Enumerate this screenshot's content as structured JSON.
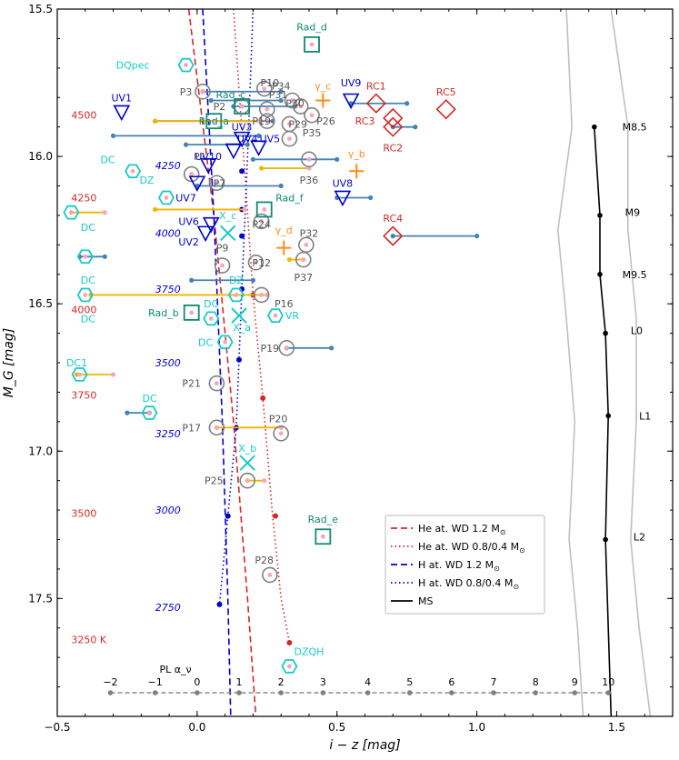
{
  "chart_data": {
    "type": "scatter",
    "xlabel": "i − z  [mag]",
    "ylabel": "M_G  [mag]",
    "xlim": [
      -0.5,
      1.7
    ],
    "ylim": [
      17.9,
      15.5
    ],
    "x_ticks": [
      -0.5,
      0.0,
      0.5,
      1.0,
      1.5
    ],
    "x_tick_labels": [
      "−0.5",
      "0.0",
      "0.5",
      "1.0",
      "1.5"
    ],
    "y_ticks": [
      15.5,
      16.0,
      16.5,
      17.0,
      17.5
    ],
    "y_tick_labels": [
      "15.5",
      "16.0",
      "16.5",
      "17.0",
      "17.5"
    ],
    "colors": {
      "he": "#d62728",
      "h": "#0000cc",
      "ms": "#000000",
      "ms_band": "#c0c0c0",
      "dc": "#19c9c9",
      "rad": "#108a73",
      "uv": "#0000cc",
      "rc": "#d62728",
      "gamma": "#ff8c1a",
      "p": "#808080",
      "pl": "#808080",
      "blue_line": "#4682b4",
      "yellow_line": "#f0b400",
      "pink": "#f4a7b9",
      "teff_he": "#d62728",
      "teff_h": "#0000cc"
    },
    "series": [
      {
        "name": "He at. WD 1.2 M☉",
        "style": "dashed",
        "color": "he",
        "x": [
          -0.03,
          0.06,
          0.13,
          0.18,
          0.21
        ],
        "y": [
          15.5,
          16.2,
          16.9,
          17.5,
          17.9
        ]
      },
      {
        "name": "He at. WD 0.8/0.4 M☉",
        "style": "dotted",
        "color": "he",
        "x": [
          0.13,
          0.17,
          0.2,
          0.235,
          0.27,
          0.3,
          0.33
        ],
        "y": [
          15.5,
          16.05,
          16.47,
          16.82,
          17.22,
          17.5,
          17.65
        ]
      },
      {
        "name": "H at. WD 1.2 M☉",
        "style": "dashed",
        "color": "h",
        "x": [
          0.02,
          0.06,
          0.09,
          0.11,
          0.12
        ],
        "y": [
          15.5,
          16.2,
          16.9,
          17.5,
          17.9
        ]
      },
      {
        "name": "H at. WD 0.8/0.4 M☉",
        "style": "dotted",
        "color": "h",
        "x": [
          0.2,
          0.18,
          0.16,
          0.14,
          0.11,
          0.08
        ],
        "y": [
          15.5,
          16.0,
          16.45,
          16.92,
          17.22,
          17.52
        ]
      },
      {
        "name": "MS",
        "style": "solid",
        "color": "ms",
        "x": [
          1.42,
          1.44,
          1.44,
          1.46,
          1.47,
          1.46,
          1.47,
          1.48
        ],
        "y": [
          15.9,
          16.2,
          16.4,
          16.6,
          16.88,
          17.3,
          17.6,
          17.9
        ]
      }
    ],
    "ms_band_upper": {
      "x": [
        1.32,
        1.34,
        1.29,
        1.32,
        1.35,
        1.33,
        1.36,
        1.38
      ],
      "y": [
        15.5,
        15.9,
        16.25,
        16.55,
        16.9,
        17.3,
        17.6,
        17.9
      ]
    },
    "ms_band_lower": {
      "x": [
        1.48,
        1.54,
        1.54,
        1.57,
        1.57,
        1.55,
        1.58,
        1.62
      ],
      "y": [
        15.5,
        15.9,
        16.25,
        16.55,
        16.9,
        17.3,
        17.6,
        17.9
      ]
    },
    "ms_points": {
      "x": [
        1.42,
        1.44,
        1.44,
        1.46,
        1.47,
        1.46
      ],
      "y": [
        15.9,
        16.2,
        16.4,
        16.6,
        16.88,
        17.3
      ]
    },
    "he_markers": {
      "x": [
        0.2,
        0.235,
        0.28,
        0.33
      ],
      "y": [
        16.47,
        16.82,
        17.22,
        17.65
      ]
    },
    "h_markers": {
      "x": [
        0.16,
        0.16,
        0.16,
        0.16,
        0.15,
        0.14,
        0.11,
        0.08
      ],
      "y": [
        16.05,
        16.18,
        16.27,
        16.45,
        16.69,
        16.92,
        17.22,
        17.52
      ]
    },
    "ms_labels": [
      {
        "text": "M8.5",
        "x": 1.52,
        "y": 15.9
      },
      {
        "text": "M9",
        "x": 1.53,
        "y": 16.19
      },
      {
        "text": "M9.5",
        "x": 1.52,
        "y": 16.4
      },
      {
        "text": "L0",
        "x": 1.55,
        "y": 16.59
      },
      {
        "text": "L1",
        "x": 1.58,
        "y": 16.88
      },
      {
        "text": "L2",
        "x": 1.56,
        "y": 17.29
      }
    ],
    "teff_he_labels": [
      {
        "text": "4500",
        "x": -0.45,
        "y": 15.86
      },
      {
        "text": "4250",
        "x": -0.45,
        "y": 16.14
      },
      {
        "text": "4000",
        "x": -0.45,
        "y": 16.52
      },
      {
        "text": "3750",
        "x": -0.45,
        "y": 16.81
      },
      {
        "text": "3500",
        "x": -0.45,
        "y": 17.21
      },
      {
        "text": "3250 K",
        "x": -0.45,
        "y": 17.64
      }
    ],
    "teff_h_labels": [
      {
        "text": "4250",
        "x": -0.15,
        "y": 16.03
      },
      {
        "text": "4000",
        "x": -0.15,
        "y": 16.26
      },
      {
        "text": "3750",
        "x": -0.15,
        "y": 16.45
      },
      {
        "text": "3500",
        "x": -0.15,
        "y": 16.7
      },
      {
        "text": "3250",
        "x": -0.15,
        "y": 16.94
      },
      {
        "text": "3000",
        "x": -0.15,
        "y": 17.2
      },
      {
        "text": "2750",
        "x": -0.15,
        "y": 17.53
      }
    ],
    "pl_axis": {
      "label": "PL α_ν",
      "label_x": -0.02,
      "y": 17.82,
      "ticks": [
        {
          "text": "−2",
          "x": -0.31
        },
        {
          "text": "−1",
          "x": -0.15
        },
        {
          "text": "0",
          "x": 0.0
        },
        {
          "text": "1",
          "x": 0.15
        },
        {
          "text": "2",
          "x": 0.3
        },
        {
          "text": "3",
          "x": 0.45
        },
        {
          "text": "4",
          "x": 0.61
        },
        {
          "text": "5",
          "x": 0.76
        },
        {
          "text": "6",
          "x": 0.91
        },
        {
          "text": "7",
          "x": 1.06
        },
        {
          "text": "8",
          "x": 1.21
        },
        {
          "text": "9",
          "x": 1.35
        },
        {
          "text": "10",
          "x": 1.47
        }
      ]
    },
    "dc_objects": [
      {
        "label": "DQpec",
        "x": -0.04,
        "y": 15.69,
        "lx": -0.23,
        "ly": 15.69
      },
      {
        "label": "DC",
        "x": -0.23,
        "y": 16.05,
        "lx": -0.32,
        "ly": 16.01
      },
      {
        "label": "DZ",
        "x": -0.11,
        "y": 16.14,
        "lx": -0.18,
        "ly": 16.08
      },
      {
        "label": "DC",
        "x": -0.45,
        "y": 16.19,
        "lx": -0.39,
        "ly": 16.24
      },
      {
        "label": "DC",
        "x": -0.4,
        "y": 16.34,
        "lx": -0.39,
        "ly": 16.42
      },
      {
        "label": "DC",
        "x": -0.4,
        "y": 16.47,
        "lx": -0.39,
        "ly": 16.55
      },
      {
        "label": "DZ",
        "x": 0.14,
        "y": 16.47,
        "lx": 0.14,
        "ly": 16.42
      },
      {
        "label": "DC",
        "x": 0.05,
        "y": 16.55,
        "lx": 0.05,
        "ly": 16.5
      },
      {
        "label": "VR",
        "x": 0.28,
        "y": 16.54,
        "lx": 0.34,
        "ly": 16.54
      },
      {
        "label": "DC",
        "x": 0.1,
        "y": 16.63,
        "lx": 0.03,
        "ly": 16.63
      },
      {
        "label": "DC1",
        "x": -0.42,
        "y": 16.74,
        "lx": -0.43,
        "ly": 16.7
      },
      {
        "label": "DC",
        "x": -0.17,
        "y": 16.87,
        "lx": -0.17,
        "ly": 16.82
      },
      {
        "label": "DZQH",
        "x": 0.33,
        "y": 17.73,
        "lx": 0.4,
        "ly": 17.68
      }
    ],
    "rad_objects": [
      {
        "label": "Rad_d",
        "x": 0.41,
        "y": 15.62,
        "lx": 0.41,
        "ly": 15.56
      },
      {
        "label": "Rad_c",
        "x": 0.16,
        "y": 15.83,
        "lx": 0.12,
        "ly": 15.79
      },
      {
        "label": "Rad_a",
        "x": 0.06,
        "y": 15.88,
        "lx": 0.06,
        "ly": 15.88
      },
      {
        "label": "Rad_f",
        "x": 0.24,
        "y": 16.18,
        "lx": 0.33,
        "ly": 16.14
      },
      {
        "label": "Rad_b",
        "x": -0.02,
        "y": 16.53,
        "lx": -0.12,
        "ly": 16.53
      },
      {
        "label": "Rad_e",
        "x": 0.45,
        "y": 17.29,
        "lx": 0.45,
        "ly": 17.23
      }
    ],
    "uv_objects": [
      {
        "label": "UV1",
        "x": -0.27,
        "y": 15.85,
        "lx": -0.27,
        "ly": 15.8
      },
      {
        "label": "UV9",
        "x": 0.55,
        "y": 15.81,
        "lx": 0.55,
        "ly": 15.75
      },
      {
        "label": "UV7",
        "x": 0.0,
        "y": 16.09,
        "lx": -0.04,
        "ly": 16.14
      },
      {
        "label": "UV8",
        "x": 0.52,
        "y": 16.14,
        "lx": 0.52,
        "ly": 16.09
      },
      {
        "label": "UV6",
        "x": 0.05,
        "y": 16.23,
        "lx": -0.03,
        "ly": 16.22
      },
      {
        "label": "UV2",
        "x": 0.03,
        "y": 16.26,
        "lx": -0.03,
        "ly": 16.29
      },
      {
        "label": "UV4",
        "x": 0.13,
        "y": 15.98,
        "lx": 0.18,
        "ly": 15.94
      },
      {
        "label": "UV5",
        "x": 0.22,
        "y": 15.97,
        "lx": 0.26,
        "ly": 15.94
      },
      {
        "label": "UV3",
        "x": 0.16,
        "y": 15.94,
        "lx": 0.16,
        "ly": 15.9
      },
      {
        "label": "UV10",
        "x": 0.04,
        "y": 16.03,
        "lx": 0.04,
        "ly": 16.0
      }
    ],
    "rc_objects": [
      {
        "label": "RC1",
        "x": 0.64,
        "y": 15.82,
        "lx": 0.64,
        "ly": 15.76
      },
      {
        "label": "RC5",
        "x": 0.89,
        "y": 15.84,
        "lx": 0.89,
        "ly": 15.78
      },
      {
        "label": "RC3",
        "x": 0.7,
        "y": 15.87,
        "lx": 0.6,
        "ly": 15.88
      },
      {
        "label": "RC2",
        "x": 0.7,
        "y": 15.9,
        "lx": 0.7,
        "ly": 15.97
      },
      {
        "label": "RC4",
        "x": 0.7,
        "y": 16.27,
        "lx": 0.7,
        "ly": 16.21
      }
    ],
    "gamma_objects": [
      {
        "label": "γ_c",
        "x": 0.45,
        "y": 15.81,
        "lx": 0.45,
        "ly": 15.76
      },
      {
        "label": "γ_b",
        "x": 0.57,
        "y": 16.05,
        "lx": 0.57,
        "ly": 15.99
      },
      {
        "label": "γ_d",
        "x": 0.31,
        "y": 16.31,
        "lx": 0.31,
        "ly": 16.25
      }
    ],
    "x_objects": [
      {
        "label": "X_c",
        "x": 0.11,
        "y": 16.26,
        "lx": 0.11,
        "ly": 16.2
      },
      {
        "label": "X_a",
        "x": 0.15,
        "y": 16.54,
        "lx": 0.16,
        "ly": 16.58
      },
      {
        "label": "X_b",
        "x": 0.18,
        "y": 17.04,
        "lx": 0.18,
        "ly": 16.99
      }
    ],
    "p_objects": [
      {
        "label": "P3",
        "x": 0.02,
        "y": 15.78,
        "lx": -0.04,
        "ly": 15.78
      },
      {
        "label": "P10",
        "x": 0.24,
        "y": 15.77,
        "lx": 0.26,
        "ly": 15.75
      },
      {
        "label": "P2",
        "x": 0.16,
        "y": 15.83,
        "lx": 0.08,
        "ly": 15.83
      },
      {
        "label": "P31",
        "x": 0.25,
        "y": 15.84,
        "lx": 0.29,
        "ly": 15.79
      },
      {
        "label": "P34",
        "x": 0.34,
        "y": 15.81,
        "lx": 0.3,
        "ly": 15.76
      },
      {
        "label": "P30",
        "x": 0.37,
        "y": 15.83,
        "lx": 0.35,
        "ly": 15.82
      },
      {
        "label": "P26",
        "x": 0.41,
        "y": 15.86,
        "lx": 0.46,
        "ly": 15.88
      },
      {
        "label": "P19",
        "x": 0.25,
        "y": 15.88,
        "lx": 0.23,
        "ly": 15.88
      },
      {
        "label": "P29",
        "x": 0.33,
        "y": 15.89,
        "lx": 0.36,
        "ly": 15.89
      },
      {
        "label": "P35",
        "x": 0.33,
        "y": 15.94,
        "lx": 0.41,
        "ly": 15.92
      },
      {
        "label": "P1",
        "x": -0.02,
        "y": 16.06,
        "lx": 0.01,
        "ly": 16.0
      },
      {
        "label": "P7",
        "x": 0.07,
        "y": 16.09,
        "lx": 0.08,
        "ly": 16.09
      },
      {
        "label": "P36",
        "x": 0.4,
        "y": 16.01,
        "lx": 0.4,
        "ly": 16.08
      },
      {
        "label": "P24",
        "x": 0.23,
        "y": 16.22,
        "lx": 0.23,
        "ly": 16.23
      },
      {
        "label": "P32",
        "x": 0.39,
        "y": 16.3,
        "lx": 0.4,
        "ly": 16.26
      },
      {
        "label": "P9",
        "x": 0.09,
        "y": 16.37,
        "lx": 0.09,
        "ly": 16.31
      },
      {
        "label": "P12",
        "x": 0.21,
        "y": 16.36,
        "lx": 0.23,
        "ly": 16.36
      },
      {
        "label": "P37",
        "x": 0.38,
        "y": 16.35,
        "lx": 0.38,
        "ly": 16.41
      },
      {
        "label": "P16",
        "x": 0.23,
        "y": 16.47,
        "lx": 0.31,
        "ly": 16.5
      },
      {
        "label": "P19",
        "x": 0.32,
        "y": 16.65,
        "lx": 0.26,
        "ly": 16.65
      },
      {
        "label": "P21",
        "x": 0.07,
        "y": 16.77,
        "lx": -0.02,
        "ly": 16.77
      },
      {
        "label": "P20",
        "x": 0.3,
        "y": 16.94,
        "lx": 0.29,
        "ly": 16.89
      },
      {
        "label": "P17",
        "x": 0.07,
        "y": 16.92,
        "lx": -0.02,
        "ly": 16.92
      },
      {
        "label": "P25",
        "x": 0.18,
        "y": 17.1,
        "lx": 0.06,
        "ly": 17.1
      },
      {
        "label": "P28",
        "x": 0.26,
        "y": 17.42,
        "lx": 0.24,
        "ly": 17.37
      }
    ],
    "color_lines": [
      {
        "c": "blue_line",
        "x1": 0.02,
        "x2": 0.3,
        "y": 15.78
      },
      {
        "c": "blue_line",
        "x1": 0.05,
        "x2": 0.3,
        "y": 15.81
      },
      {
        "c": "blue_line",
        "x1": 0.13,
        "x2": 0.35,
        "y": 15.83
      },
      {
        "c": "blue_line",
        "x1": 0.55,
        "x2": 0.75,
        "y": 15.82
      },
      {
        "c": "blue_line",
        "x1": 0.7,
        "x2": 0.78,
        "y": 15.9
      },
      {
        "c": "blue_line",
        "x1": -0.15,
        "x2": 0.27,
        "y": 15.88
      },
      {
        "c": "blue_line",
        "x1": -0.3,
        "x2": 0.22,
        "y": 15.93
      },
      {
        "c": "blue_line",
        "x1": -0.04,
        "x2": 0.18,
        "y": 15.96
      },
      {
        "c": "blue_line",
        "x1": 0.2,
        "x2": 0.5,
        "y": 16.01
      },
      {
        "c": "blue_line",
        "x1": 0.0,
        "x2": 0.3,
        "y": 16.1
      },
      {
        "c": "blue_line",
        "x1": 0.5,
        "x2": 0.62,
        "y": 16.14
      },
      {
        "c": "blue_line",
        "x1": 0.7,
        "x2": 1.0,
        "y": 16.27
      },
      {
        "c": "blue_line",
        "x1": -0.42,
        "x2": -0.33,
        "y": 16.34
      },
      {
        "c": "blue_line",
        "x1": -0.02,
        "x2": 0.2,
        "y": 16.42
      },
      {
        "c": "blue_line",
        "x1": 0.32,
        "x2": 0.48,
        "y": 16.65
      },
      {
        "c": "blue_line",
        "x1": -0.25,
        "x2": -0.17,
        "y": 16.87
      },
      {
        "c": "yellow_line",
        "x1": -0.38,
        "x2": 0.25,
        "y": 16.47
      },
      {
        "c": "yellow_line",
        "x1": -0.45,
        "x2": -0.33,
        "y": 16.19
      },
      {
        "c": "yellow_line",
        "x1": -0.43,
        "x2": -0.3,
        "y": 16.74
      },
      {
        "c": "yellow_line",
        "x1": -0.15,
        "x2": 0.22,
        "y": 15.88
      },
      {
        "c": "yellow_line",
        "x1": 0.07,
        "x2": 0.3,
        "y": 16.92
      },
      {
        "c": "yellow_line",
        "x1": 0.33,
        "x2": 0.38,
        "y": 16.35
      },
      {
        "c": "yellow_line",
        "x1": 0.23,
        "x2": 0.4,
        "y": 16.04
      },
      {
        "c": "yellow_line",
        "x1": -0.15,
        "x2": 0.17,
        "y": 16.18
      },
      {
        "c": "yellow_line",
        "x1": 0.18,
        "x2": 0.24,
        "y": 17.1
      }
    ],
    "legend": {
      "position": "lower-right",
      "entries": [
        {
          "text": "He at. WD 1.2 M",
          "sub": "⊙",
          "style": "dashed",
          "color": "he"
        },
        {
          "text": "He at. WD 0.8/0.4 M",
          "sub": "⊙",
          "style": "dotted",
          "color": "he"
        },
        {
          "text": "H at. WD 1.2 M",
          "sub": "⊙",
          "style": "dashed",
          "color": "h"
        },
        {
          "text": "H at. WD 0.8/0.4 M",
          "sub": "⊙",
          "style": "dotted",
          "color": "h"
        },
        {
          "text": "MS",
          "sub": "",
          "style": "solid",
          "color": "ms"
        }
      ]
    }
  }
}
